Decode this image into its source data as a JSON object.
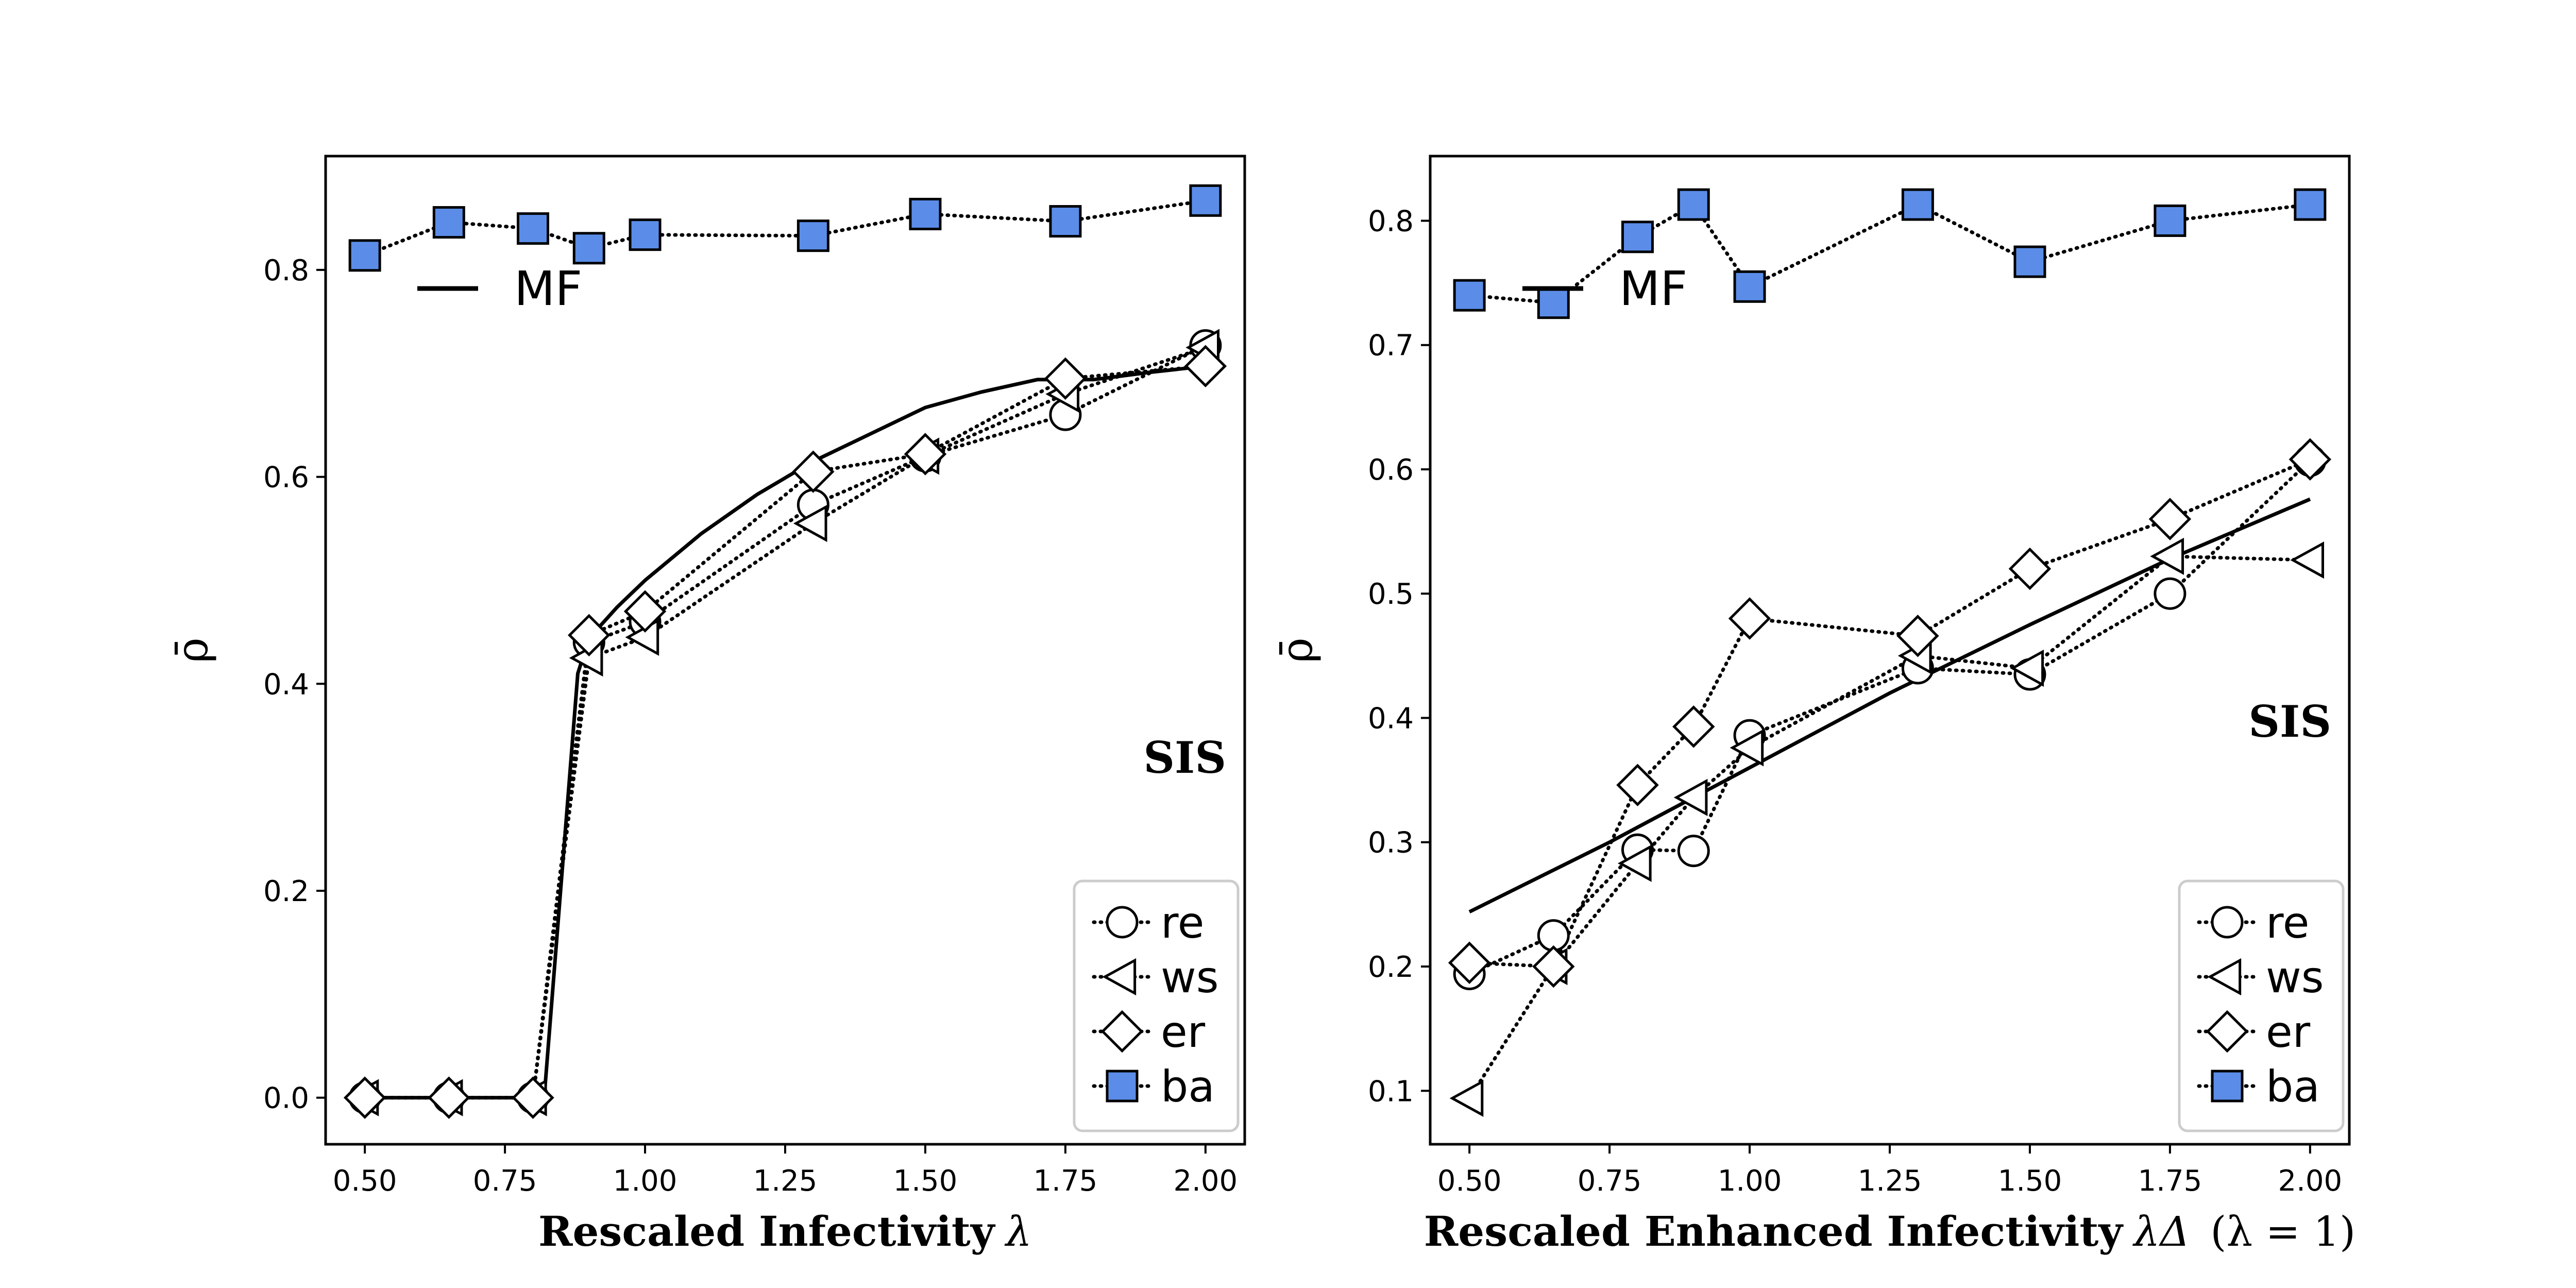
{
  "colors": {
    "ba": "#5B8DE8",
    "line": "#000000",
    "marker_face": "#ffffff"
  },
  "chart_data": [
    {
      "type": "line",
      "xlabel": "Rescaled Infectivity",
      "xlabel_symbol": "λ",
      "ylabel": "ρ̄",
      "annotation": "SIS",
      "mf_label": "MF",
      "xlim": [
        0.43,
        2.07
      ],
      "ylim": [
        -0.045,
        0.91
      ],
      "xticks": [
        0.5,
        0.75,
        1.0,
        1.25,
        1.5,
        1.75,
        2.0
      ],
      "xtick_labels": [
        "0.50",
        "0.75",
        "1.00",
        "1.25",
        "1.50",
        "1.75",
        "2.00"
      ],
      "yticks": [
        0.0,
        0.2,
        0.4,
        0.6,
        0.8
      ],
      "ytick_labels": [
        "0.0",
        "0.2",
        "0.4",
        "0.6",
        "0.8"
      ],
      "legend_position": "lower-right",
      "x": [
        0.5,
        0.65,
        0.8,
        0.9,
        1.0,
        1.3,
        1.5,
        1.75,
        2.0
      ],
      "series": [
        {
          "name": "re",
          "marker": "circle",
          "values": [
            0.0,
            0.0,
            0.0,
            0.44,
            0.46,
            0.573,
            0.62,
            0.66,
            0.727
          ]
        },
        {
          "name": "ws",
          "marker": "triangle-left",
          "values": [
            0.0,
            0.0,
            0.0,
            0.425,
            0.445,
            0.555,
            0.62,
            0.68,
            0.725
          ]
        },
        {
          "name": "er",
          "marker": "diamond",
          "values": [
            0.0,
            0.0,
            0.0,
            0.447,
            0.47,
            0.605,
            0.622,
            0.695,
            0.707
          ]
        },
        {
          "name": "ba",
          "marker": "square-filled",
          "values": [
            0.814,
            0.846,
            0.84,
            0.821,
            0.834,
            0.833,
            0.854,
            0.847,
            0.867
          ]
        }
      ],
      "mf_curve": {
        "x": [
          0.5,
          0.8,
          0.82,
          0.88,
          0.9,
          0.95,
          1.0,
          1.1,
          1.2,
          1.3,
          1.4,
          1.5,
          1.6,
          1.7,
          1.8,
          1.9,
          2.0
        ],
        "values": [
          0.0,
          0.0,
          0.0,
          0.41,
          0.444,
          0.474,
          0.5,
          0.545,
          0.583,
          0.615,
          0.641,
          0.667,
          0.682,
          0.694,
          0.694,
          0.701,
          0.707
        ]
      }
    },
    {
      "type": "line",
      "xlabel": "Rescaled Enhanced Infectivity",
      "xlabel_symbol": "λΔ",
      "xlabel_suffix": "(λ = 1)",
      "ylabel": "ρ̄",
      "annotation": "SIS",
      "mf_label": "MF",
      "xlim": [
        0.43,
        2.07
      ],
      "ylim": [
        0.057,
        0.852
      ],
      "xticks": [
        0.5,
        0.75,
        1.0,
        1.25,
        1.5,
        1.75,
        2.0
      ],
      "xtick_labels": [
        "0.50",
        "0.75",
        "1.00",
        "1.25",
        "1.50",
        "1.75",
        "2.00"
      ],
      "yticks": [
        0.1,
        0.2,
        0.3,
        0.4,
        0.5,
        0.6,
        0.7,
        0.8
      ],
      "ytick_labels": [
        "0.1",
        "0.2",
        "0.3",
        "0.4",
        "0.5",
        "0.6",
        "0.7",
        "0.8"
      ],
      "legend_position": "lower-right",
      "x": [
        0.5,
        0.65,
        0.8,
        0.9,
        1.0,
        1.3,
        1.5,
        1.75,
        2.0
      ],
      "series": [
        {
          "name": "re",
          "marker": "circle",
          "values": [
            0.194,
            0.225,
            0.294,
            0.293,
            0.386,
            0.44,
            0.435,
            0.5,
            0.607
          ]
        },
        {
          "name": "ws",
          "marker": "triangle-left",
          "values": [
            0.094,
            0.2,
            0.283,
            0.336,
            0.376,
            0.45,
            0.44,
            0.53,
            0.527
          ]
        },
        {
          "name": "er",
          "marker": "diamond",
          "values": [
            0.203,
            0.2,
            0.346,
            0.393,
            0.48,
            0.466,
            0.52,
            0.56,
            0.608
          ]
        },
        {
          "name": "ba",
          "marker": "square-filled",
          "values": [
            0.74,
            0.734,
            0.787,
            0.813,
            0.747,
            0.813,
            0.767,
            0.8,
            0.813
          ]
        }
      ],
      "mf_curve": {
        "x": [
          0.5,
          0.75,
          1.0,
          1.25,
          1.5,
          1.75,
          2.0
        ],
        "values": [
          0.244,
          0.3,
          0.36,
          0.42,
          0.475,
          0.528,
          0.576
        ]
      }
    }
  ]
}
